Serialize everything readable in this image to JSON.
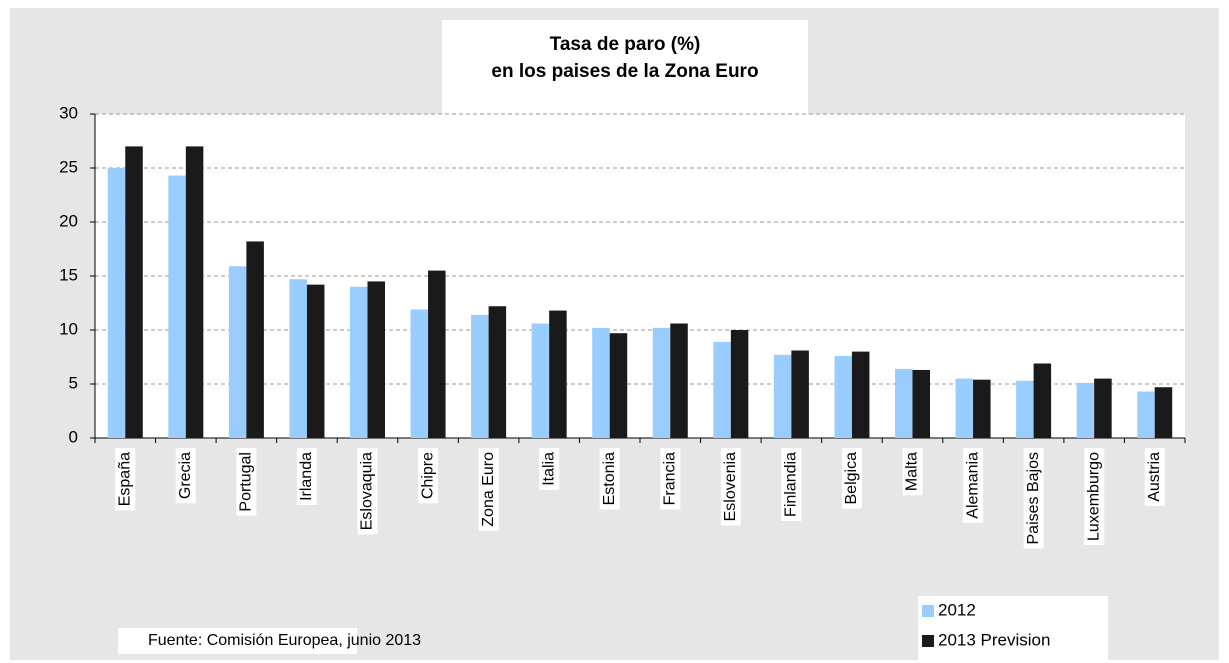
{
  "chart_data": {
    "type": "bar",
    "title": "Tasa de paro (%)",
    "subtitle": "en los paises de la Zona Euro",
    "categories": [
      "España",
      "Grecia",
      "Portugal",
      "Irlanda",
      "Eslovaquia",
      "Chipre",
      "Zona Euro",
      "Italia",
      "Estonia",
      "Francia",
      "Eslovenia",
      "Finlandia",
      "Belgica",
      "Malta",
      "Alemania",
      "Paises Bajos",
      "Luxemburgo",
      "Austria"
    ],
    "series": [
      {
        "name": "2012",
        "color": "#99ccff",
        "values": [
          25.0,
          24.3,
          15.9,
          14.7,
          14.0,
          11.9,
          11.4,
          10.6,
          10.2,
          10.2,
          8.9,
          7.7,
          7.6,
          6.4,
          5.5,
          5.3,
          5.1,
          4.3
        ]
      },
      {
        "name": "2013 Prevision",
        "color": "#1a1a1a",
        "values": [
          27.0,
          27.0,
          18.2,
          14.2,
          14.5,
          15.5,
          12.2,
          11.8,
          9.7,
          10.6,
          10.0,
          8.1,
          8.0,
          6.3,
          5.4,
          6.9,
          5.5,
          4.7
        ]
      }
    ],
    "ylim": [
      0,
      30
    ],
    "yticks": [
      0,
      5,
      10,
      15,
      20,
      25,
      30
    ],
    "grid": true,
    "legend": "bottom-right",
    "source": "Fuente: Comisión Europea, junio 2013"
  }
}
